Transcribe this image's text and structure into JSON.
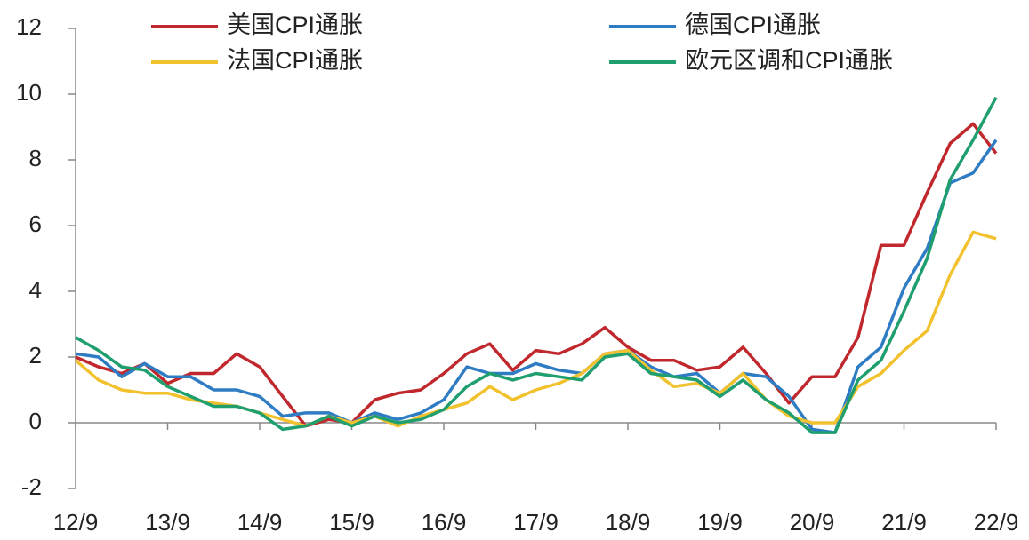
{
  "chart_data": {
    "type": "line",
    "categories": [
      "12/9",
      null,
      null,
      null,
      "13/9",
      null,
      null,
      null,
      "14/9",
      null,
      null,
      null,
      "15/9",
      null,
      null,
      null,
      "16/9",
      null,
      null,
      null,
      "17/9",
      null,
      null,
      null,
      "18/9",
      null,
      null,
      null,
      "19/9",
      null,
      null,
      null,
      "20/9",
      null,
      null,
      null,
      "21/9",
      null,
      null,
      null,
      "22/9"
    ],
    "series": [
      {
        "name": "美国CPI通胀",
        "color": "#c0282d",
        "values": [
          2.0,
          1.7,
          1.5,
          1.8,
          1.2,
          1.5,
          1.5,
          2.1,
          1.7,
          0.8,
          -0.1,
          0.1,
          0.0,
          0.7,
          0.9,
          1.0,
          1.5,
          2.1,
          2.4,
          1.6,
          2.2,
          2.1,
          2.4,
          2.9,
          2.3,
          1.9,
          1.9,
          1.6,
          1.7,
          2.3,
          1.5,
          0.6,
          1.4,
          1.4,
          2.6,
          5.4,
          5.4,
          7.0,
          8.5,
          9.1,
          8.2
        ]
      },
      {
        "name": "德国CPI通胀",
        "color": "#2e7dc4",
        "values": [
          2.1,
          2.0,
          1.4,
          1.8,
          1.4,
          1.4,
          1.0,
          1.0,
          0.8,
          0.2,
          0.3,
          0.3,
          0.0,
          0.3,
          0.1,
          0.3,
          0.7,
          1.7,
          1.5,
          1.5,
          1.8,
          1.6,
          1.5,
          2.1,
          2.2,
          1.7,
          1.4,
          1.5,
          0.9,
          1.5,
          1.4,
          0.8,
          -0.2,
          -0.3,
          1.7,
          2.3,
          4.1,
          5.3,
          7.3,
          7.6,
          8.6
        ]
      },
      {
        "name": "法国CPI通胀",
        "color": "#f2c12e",
        "values": [
          1.9,
          1.3,
          1.0,
          0.9,
          0.9,
          0.7,
          0.6,
          0.5,
          0.3,
          0.1,
          -0.1,
          0.2,
          0.0,
          0.2,
          -0.1,
          0.2,
          0.4,
          0.6,
          1.1,
          0.7,
          1.0,
          1.2,
          1.5,
          2.1,
          2.2,
          1.6,
          1.1,
          1.2,
          0.9,
          1.5,
          0.7,
          0.2,
          0.0,
          0.0,
          1.1,
          1.5,
          2.2,
          2.8,
          4.5,
          5.8,
          5.6
        ]
      },
      {
        "name": "欧元区调和CPI通胀",
        "color": "#1f9e6e",
        "values": [
          2.6,
          2.2,
          1.7,
          1.6,
          1.1,
          0.8,
          0.5,
          0.5,
          0.3,
          -0.2,
          -0.1,
          0.2,
          -0.1,
          0.2,
          0.0,
          0.1,
          0.4,
          1.1,
          1.5,
          1.3,
          1.5,
          1.4,
          1.3,
          2.0,
          2.1,
          1.5,
          1.4,
          1.3,
          0.8,
          1.3,
          0.7,
          0.3,
          -0.3,
          -0.3,
          1.3,
          1.9,
          3.4,
          5.0,
          7.4,
          8.6,
          9.9
        ]
      }
    ],
    "ylim": [
      -2,
      12
    ],
    "yticks": [
      -2,
      0,
      2,
      4,
      6,
      8,
      10,
      12
    ]
  }
}
